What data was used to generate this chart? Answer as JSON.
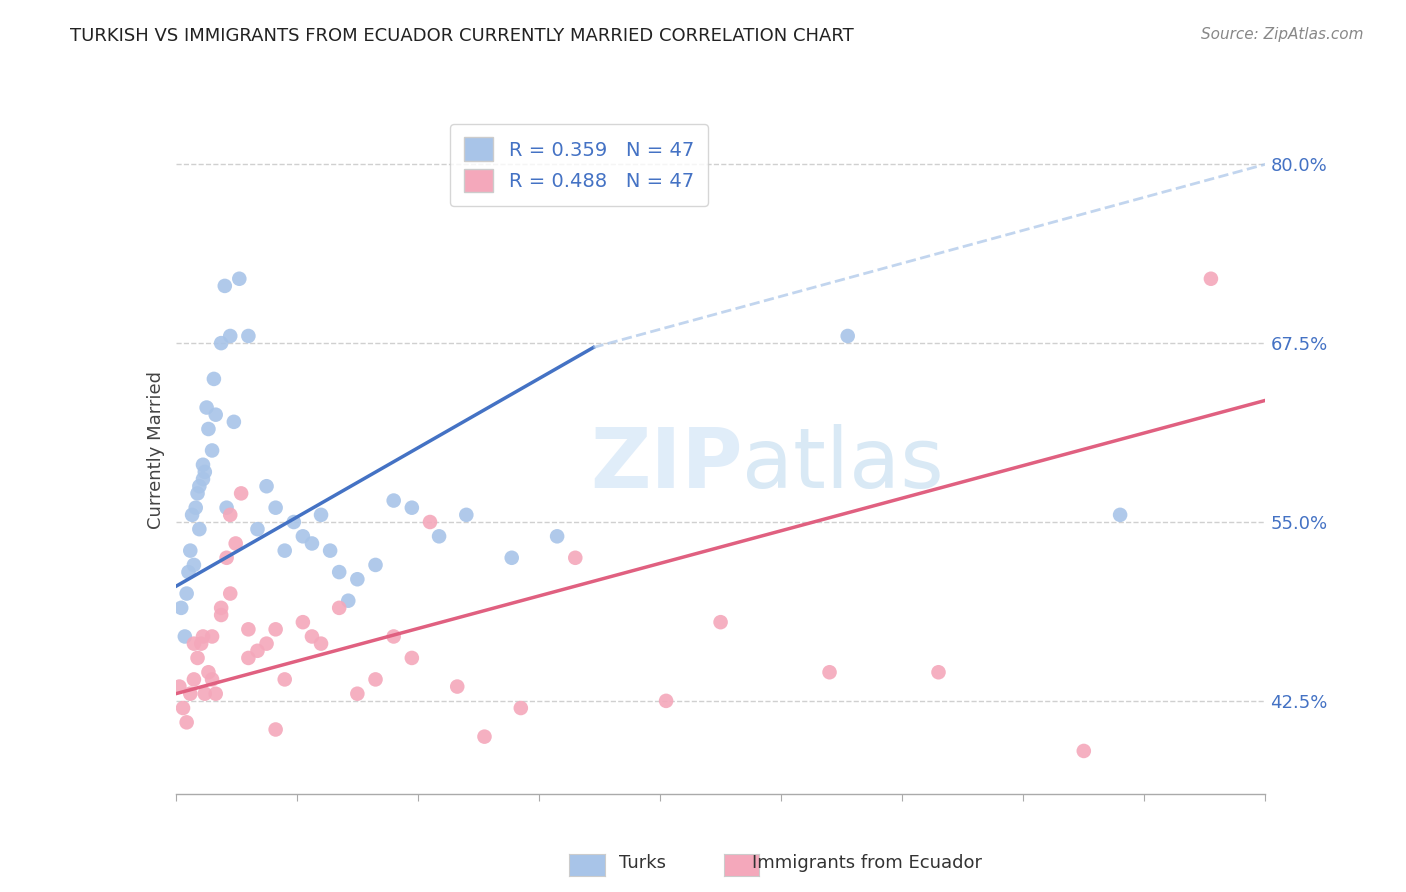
{
  "title": "TURKISH VS IMMIGRANTS FROM ECUADOR CURRENTLY MARRIED CORRELATION CHART",
  "source": "Source: ZipAtlas.com",
  "ylabel": "Currently Married",
  "yticks": [
    42.5,
    55.0,
    67.5,
    80.0
  ],
  "ytick_labels": [
    "42.5%",
    "55.0%",
    "67.5%",
    "80.0%"
  ],
  "xmin": 0.0,
  "xmax": 60.0,
  "ymin": 36.0,
  "ymax": 84.0,
  "R_turks": 0.359,
  "N_turks": 47,
  "R_ecuador": 0.488,
  "N_ecuador": 47,
  "color_turks": "#a8c4e8",
  "color_ecuador": "#f4a8bb",
  "color_line_turks": "#4472c4",
  "color_line_ecuador": "#e06080",
  "color_dashed": "#a8c4e8",
  "turks_line_x0": 0.0,
  "turks_line_y0": 50.5,
  "turks_line_x1": 23.0,
  "turks_line_y1": 67.2,
  "turks_dashed_x0": 23.0,
  "turks_dashed_y0": 67.2,
  "turks_dashed_x1": 60.0,
  "turks_dashed_y1": 80.0,
  "ecuador_line_x0": 0.0,
  "ecuador_line_y0": 43.0,
  "ecuador_line_x1": 60.0,
  "ecuador_line_y1": 63.5,
  "turks_x": [
    0.3,
    0.5,
    0.6,
    0.7,
    0.8,
    0.9,
    1.0,
    1.1,
    1.2,
    1.3,
    1.5,
    1.6,
    1.7,
    1.8,
    2.0,
    2.1,
    2.2,
    2.5,
    2.7,
    3.0,
    3.5,
    4.0,
    4.5,
    5.0,
    5.5,
    6.0,
    6.5,
    7.0,
    7.5,
    8.0,
    8.5,
    9.0,
    9.5,
    10.0,
    11.0,
    12.0,
    13.0,
    14.5,
    16.0,
    18.5,
    21.0,
    37.0,
    52.0,
    1.3,
    1.5,
    2.8,
    3.2
  ],
  "turks_y": [
    49.0,
    47.0,
    50.0,
    51.5,
    53.0,
    55.5,
    52.0,
    56.0,
    57.0,
    54.5,
    59.0,
    58.5,
    63.0,
    61.5,
    60.0,
    65.0,
    62.5,
    67.5,
    71.5,
    68.0,
    72.0,
    68.0,
    54.5,
    57.5,
    56.0,
    53.0,
    55.0,
    54.0,
    53.5,
    55.5,
    53.0,
    51.5,
    49.5,
    51.0,
    52.0,
    56.5,
    56.0,
    54.0,
    55.5,
    52.5,
    54.0,
    68.0,
    55.5,
    57.5,
    58.0,
    56.0,
    62.0
  ],
  "ecuador_x": [
    0.2,
    0.4,
    0.6,
    0.8,
    1.0,
    1.2,
    1.4,
    1.6,
    1.8,
    2.0,
    2.2,
    2.5,
    2.8,
    3.0,
    3.3,
    3.6,
    4.0,
    4.5,
    5.0,
    5.5,
    6.0,
    7.0,
    7.5,
    8.0,
    9.0,
    10.0,
    11.0,
    12.0,
    13.0,
    14.0,
    15.5,
    17.0,
    19.0,
    22.0,
    27.0,
    30.0,
    36.0,
    42.0,
    50.0,
    57.0,
    1.0,
    1.5,
    2.0,
    2.5,
    3.0,
    4.0,
    5.5
  ],
  "ecuador_y": [
    43.5,
    42.0,
    41.0,
    43.0,
    44.0,
    45.5,
    46.5,
    43.0,
    44.5,
    47.0,
    43.0,
    48.5,
    52.5,
    55.5,
    53.5,
    57.0,
    45.5,
    46.0,
    46.5,
    47.5,
    44.0,
    48.0,
    47.0,
    46.5,
    49.0,
    43.0,
    44.0,
    47.0,
    45.5,
    55.0,
    43.5,
    40.0,
    42.0,
    52.5,
    42.5,
    48.0,
    44.5,
    44.5,
    39.0,
    72.0,
    46.5,
    47.0,
    44.0,
    49.0,
    50.0,
    47.5,
    40.5
  ],
  "watermark_zip": "ZIP",
  "watermark_atlas": "atlas",
  "background_color": "#ffffff",
  "grid_color": "#d0d0d0",
  "legend_edge_color": "#cccccc",
  "title_fontsize": 13,
  "tick_label_color": "#4472c4"
}
